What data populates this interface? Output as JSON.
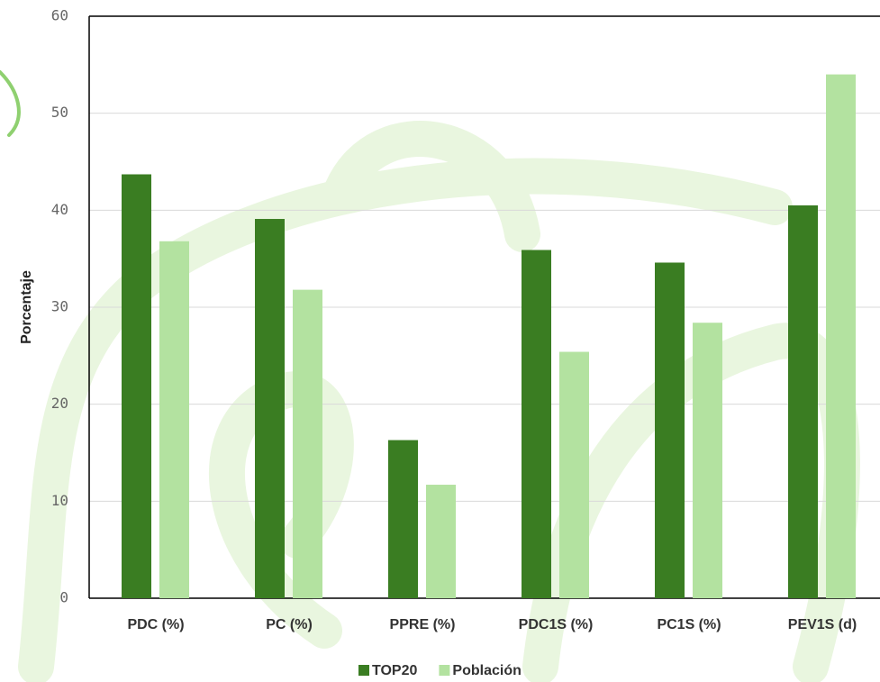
{
  "chart_data": {
    "type": "bar",
    "ylabel": "Porcentaje",
    "categories": [
      "PDC (%)",
      "PC (%)",
      "PPRE (%)",
      "PDC1S (%)",
      "PC1S (%)",
      "PEV1S (d)"
    ],
    "series": [
      {
        "name": "TOP20",
        "color": "#3a7d22",
        "values": [
          43.7,
          39.1,
          16.3,
          35.9,
          34.6,
          40.5
        ]
      },
      {
        "name": "Población",
        "color": "#b3e2a0",
        "values": [
          36.8,
          31.8,
          11.7,
          25.4,
          28.4,
          54.0
        ]
      }
    ],
    "ylim": [
      0,
      60
    ],
    "yticks": [
      0,
      10,
      20,
      30,
      40,
      50,
      60
    ],
    "grid": true
  }
}
